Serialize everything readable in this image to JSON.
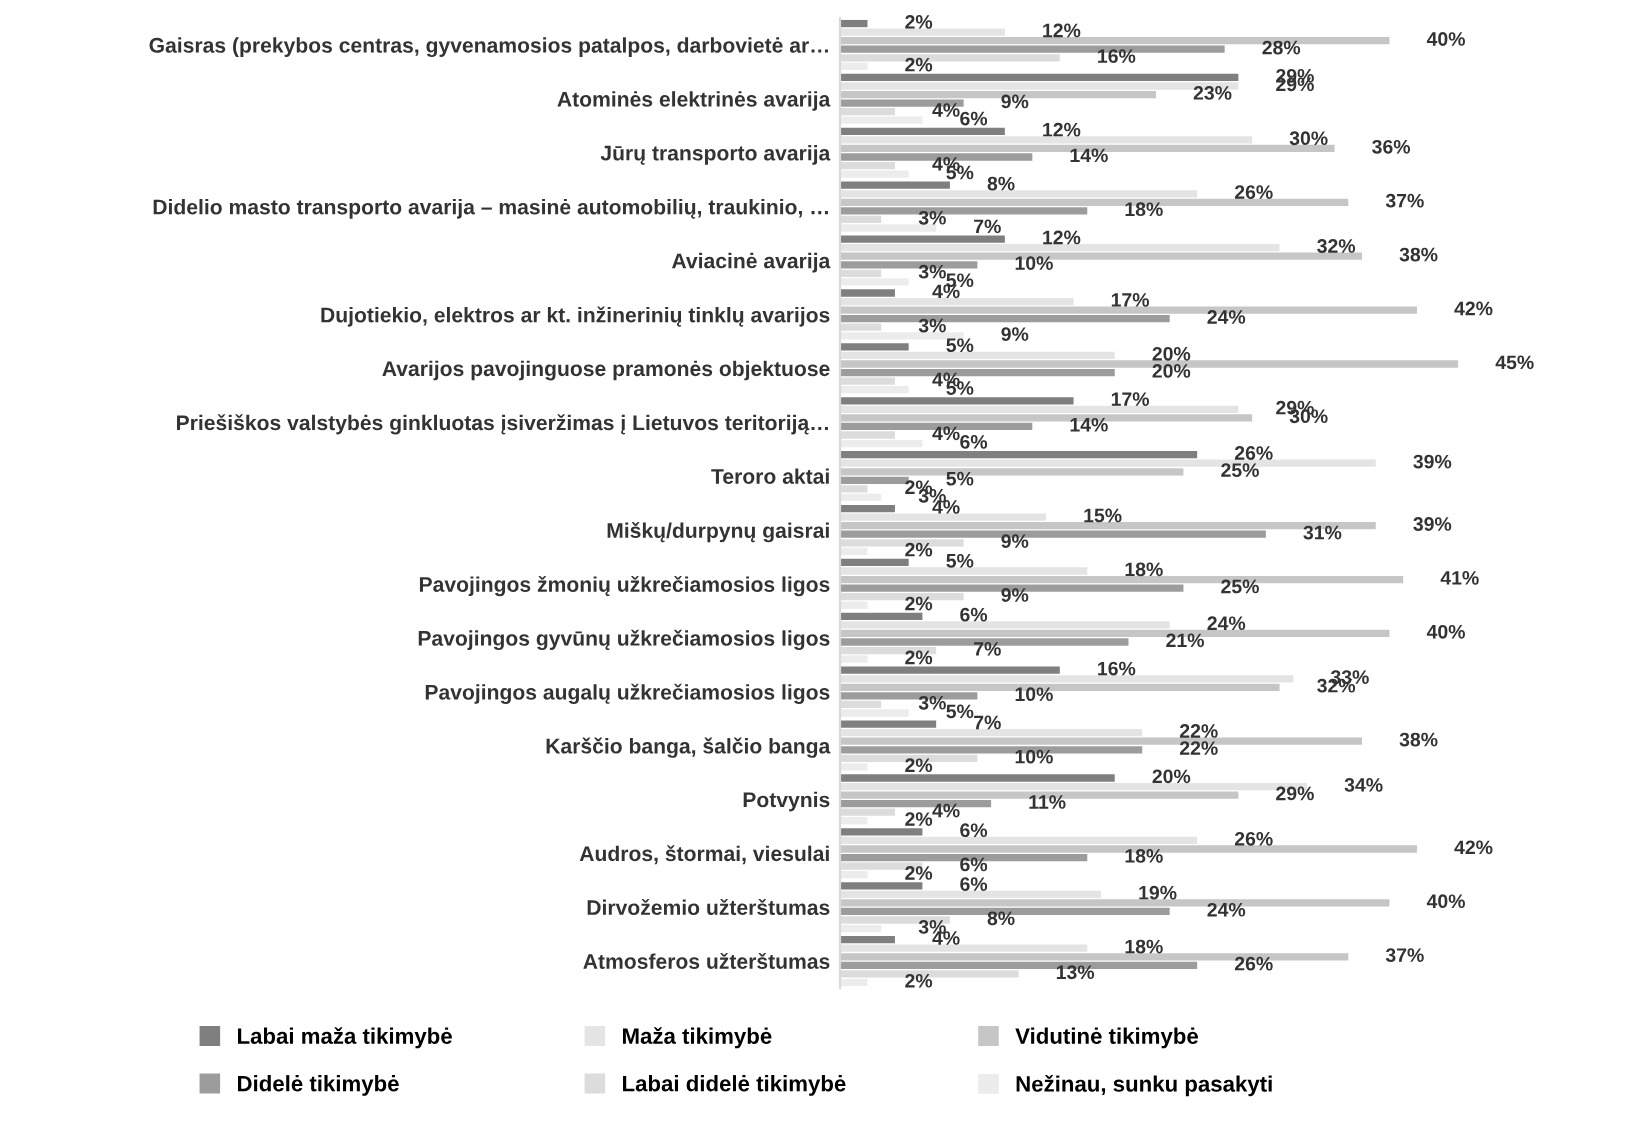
{
  "chart_data": {
    "type": "bar",
    "orientation": "horizontal",
    "legend": "bottom",
    "grid": false,
    "categories": [
      "Gaisras (prekybos centras, gyvenamosios patalpos, darbovietė ar…",
      "Atominės elektrinės avarija",
      "Jūrų transporto avarija",
      "Didelio masto transporto avarija – masinė automobilių, traukinio, …",
      "Aviacinė avarija",
      "Dujotiekio, elektros ar kt. inžinerinių tinklų avarijos",
      "Avarijos pavojinguose pramonės objektuose",
      "Priešiškos valstybės ginkluotas įsiveržimas į Lietuvos teritoriją…",
      "Teroro aktai",
      "Miškų/durpynų gaisrai",
      "Pavojingos žmonių užkrečiamosios ligos",
      "Pavojingos gyvūnų užkrečiamosios ligos",
      "Pavojingos augalų užkrečiamosios ligos",
      "Karščio banga, šalčio banga",
      "Potvynis",
      "Audros, štormai, viesulai",
      "Dirvožemio užterštumas",
      "Atmosferos užterštumas"
    ],
    "series": [
      {
        "name": "Labai maža tikimybė",
        "color": "#7f7f7f",
        "values": [
          2,
          29,
          12,
          8,
          12,
          4,
          5,
          17,
          26,
          4,
          5,
          6,
          16,
          7,
          20,
          6,
          6,
          4
        ],
        "value_labels": [
          "2%",
          "29%",
          "12%",
          "8%",
          "12%",
          "4%",
          "5%",
          "17%",
          "26%",
          "4%",
          "5%",
          "6%",
          "16%",
          "7%",
          "20%",
          "6%",
          "6%",
          "4%"
        ]
      },
      {
        "name": "Maža tikimybė",
        "color": "#e4e4e4",
        "values": [
          12,
          29,
          30,
          26,
          32,
          17,
          20,
          29,
          39,
          15,
          18,
          24,
          33,
          22,
          34,
          26,
          19,
          18
        ],
        "value_labels": [
          "12%",
          "29%",
          "30%",
          "26%",
          "32%",
          "17%",
          "20%",
          "29%",
          "39%",
          "15%",
          "18%",
          "24%",
          "33%",
          "22%",
          "34%",
          "26%",
          "19%",
          "18%"
        ]
      },
      {
        "name": "Vidutinė tikimybė",
        "color": "#c6c6c6",
        "values": [
          40,
          23,
          36,
          37,
          38,
          42,
          45,
          30,
          25,
          39,
          41,
          40,
          32,
          38,
          29,
          42,
          40,
          37
        ],
        "value_labels": [
          "40%",
          "23%",
          "36%",
          "37%",
          "38%",
          "42%",
          "45%",
          "30%",
          "25%",
          "39%",
          "41%",
          "40%",
          "32%",
          "38%",
          "29%",
          "42%",
          "40%",
          "37%"
        ]
      },
      {
        "name": "Didelė tikimybė",
        "color": "#9c9c9c",
        "values": [
          28,
          9,
          14,
          18,
          10,
          24,
          20,
          14,
          5,
          31,
          25,
          21,
          10,
          22,
          11,
          18,
          24,
          26
        ],
        "value_labels": [
          "28%",
          "9%",
          "14%",
          "18%",
          "10%",
          "24%",
          "20%",
          "14%",
          "5%",
          "31%",
          "25%",
          "21%",
          "10%",
          "22%",
          "11%",
          "18%",
          "24%",
          "26%"
        ]
      },
      {
        "name": "Labai didelė tikimybė",
        "color": "#dcdcdc",
        "values": [
          16,
          4,
          4,
          3,
          3,
          3,
          4,
          4,
          2,
          9,
          9,
          7,
          3,
          10,
          4,
          6,
          8,
          13
        ],
        "value_labels": [
          "16%",
          "4%",
          "4%",
          "3%",
          "3%",
          "3%",
          "4%",
          "4%",
          "2%",
          "9%",
          "9%",
          "7%",
          "3%",
          "10%",
          "4%",
          "6%",
          "8%",
          "13%"
        ]
      },
      {
        "name": "Nežinau, sunku pasakyti",
        "color": "#ececec",
        "values": [
          2,
          6,
          5,
          7,
          5,
          9,
          5,
          6,
          3,
          2,
          2,
          2,
          5,
          2,
          2,
          2,
          3,
          2
        ],
        "value_labels": [
          "2%",
          "6%",
          "5%",
          "7%",
          "5%",
          "9%",
          "5%",
          "6%",
          "3%",
          "2%",
          "2%",
          "2%",
          "5%",
          "2%",
          "2%",
          "2%",
          "3%",
          "2%"
        ]
      }
    ]
  }
}
